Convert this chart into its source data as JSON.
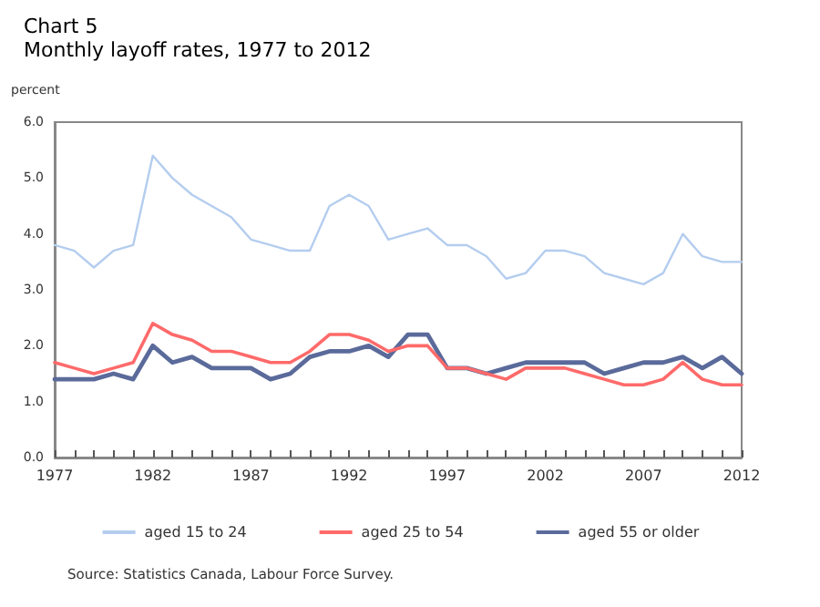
{
  "chart_data": {
    "type": "line",
    "title": "Chart 5",
    "subtitle": "Monthly layoff rates, 1977 to 2012",
    "ylabel": "percent",
    "x": [
      1977,
      1978,
      1979,
      1980,
      1981,
      1982,
      1983,
      1984,
      1985,
      1986,
      1987,
      1988,
      1989,
      1990,
      1991,
      1992,
      1993,
      1994,
      1995,
      1996,
      1997,
      1998,
      1999,
      2000,
      2001,
      2002,
      2003,
      2004,
      2005,
      2006,
      2007,
      2008,
      2009,
      2010,
      2011,
      2012
    ],
    "series": [
      {
        "name": "aged 15 to 24",
        "color": "#b4cdef",
        "values": [
          3.8,
          3.7,
          3.4,
          3.7,
          3.8,
          5.4,
          5.0,
          4.7,
          4.5,
          4.3,
          3.9,
          3.8,
          3.7,
          3.7,
          4.5,
          4.7,
          4.5,
          3.9,
          4.0,
          4.1,
          3.8,
          3.8,
          3.6,
          3.2,
          3.3,
          3.7,
          3.7,
          3.6,
          3.3,
          3.2,
          3.1,
          3.3,
          4.0,
          3.6,
          3.5,
          3.5
        ]
      },
      {
        "name": "aged 25 to 54",
        "color": "#ff6a6a",
        "values": [
          1.7,
          1.6,
          1.5,
          1.6,
          1.7,
          2.4,
          2.2,
          2.1,
          1.9,
          1.9,
          1.8,
          1.7,
          1.7,
          1.9,
          2.2,
          2.2,
          2.1,
          1.9,
          2.0,
          2.0,
          1.6,
          1.6,
          1.5,
          1.4,
          1.6,
          1.6,
          1.6,
          1.5,
          1.4,
          1.3,
          1.3,
          1.4,
          1.7,
          1.4,
          1.3,
          1.3
        ]
      },
      {
        "name": "aged 55 or older",
        "color": "#5a6a9a",
        "values": [
          1.4,
          1.4,
          1.4,
          1.5,
          1.4,
          2.0,
          1.7,
          1.8,
          1.6,
          1.6,
          1.6,
          1.4,
          1.5,
          1.8,
          1.9,
          1.9,
          2.0,
          1.8,
          2.2,
          2.2,
          1.6,
          1.6,
          1.5,
          1.6,
          1.7,
          1.7,
          1.7,
          1.7,
          1.5,
          1.6,
          1.7,
          1.7,
          1.8,
          1.6,
          1.8,
          1.5
        ]
      }
    ],
    "xlim": [
      1977,
      2012
    ],
    "xticks": [
      1977,
      {
        "value": 1978,
        "label": null
      },
      {
        "value": 1979,
        "label": null
      },
      {
        "value": 1980,
        "label": null
      },
      {
        "value": 1981,
        "label": null
      },
      1982,
      {
        "value": 1983,
        "label": null
      },
      {
        "value": 1984,
        "label": null
      },
      {
        "value": 1985,
        "label": null
      },
      {
        "value": 1986,
        "label": null
      },
      1987,
      {
        "value": 1988,
        "label": null
      },
      {
        "value": 1989,
        "label": null
      },
      {
        "value": 1990,
        "label": null
      },
      {
        "value": 1991,
        "label": null
      },
      1992,
      {
        "value": 1993,
        "label": null
      },
      {
        "value": 1994,
        "label": null
      },
      {
        "value": 1995,
        "label": null
      },
      {
        "value": 1996,
        "label": null
      },
      1997,
      {
        "value": 1998,
        "label": null
      },
      {
        "value": 1999,
        "label": null
      },
      {
        "value": 2000,
        "label": null
      },
      {
        "value": 2001,
        "label": null
      },
      2002,
      {
        "value": 2003,
        "label": null
      },
      {
        "value": 2004,
        "label": null
      },
      {
        "value": 2005,
        "label": null
      },
      {
        "value": 2006,
        "label": null
      },
      2007,
      {
        "value": 2008,
        "label": null
      },
      {
        "value": 2009,
        "label": null
      },
      {
        "value": 2010,
        "label": null
      },
      {
        "value": 2011,
        "label": null
      },
      2012
    ],
    "ylim": [
      0,
      6
    ],
    "yticks": [
      {
        "value": 0,
        "label": "0.0"
      },
      {
        "value": 1,
        "label": "1.0"
      },
      {
        "value": 2,
        "label": "2.0"
      },
      {
        "value": 3,
        "label": "3.0"
      },
      {
        "value": 4,
        "label": "4.0"
      },
      {
        "value": 5,
        "label": "5.0"
      },
      {
        "value": 6,
        "label": "6.0"
      }
    ],
    "grid": false,
    "legend": "bottom",
    "marker": "none",
    "line_style": "solid",
    "annotations": [
      "Source: Statistics Canada, Labour Force Survey."
    ]
  }
}
